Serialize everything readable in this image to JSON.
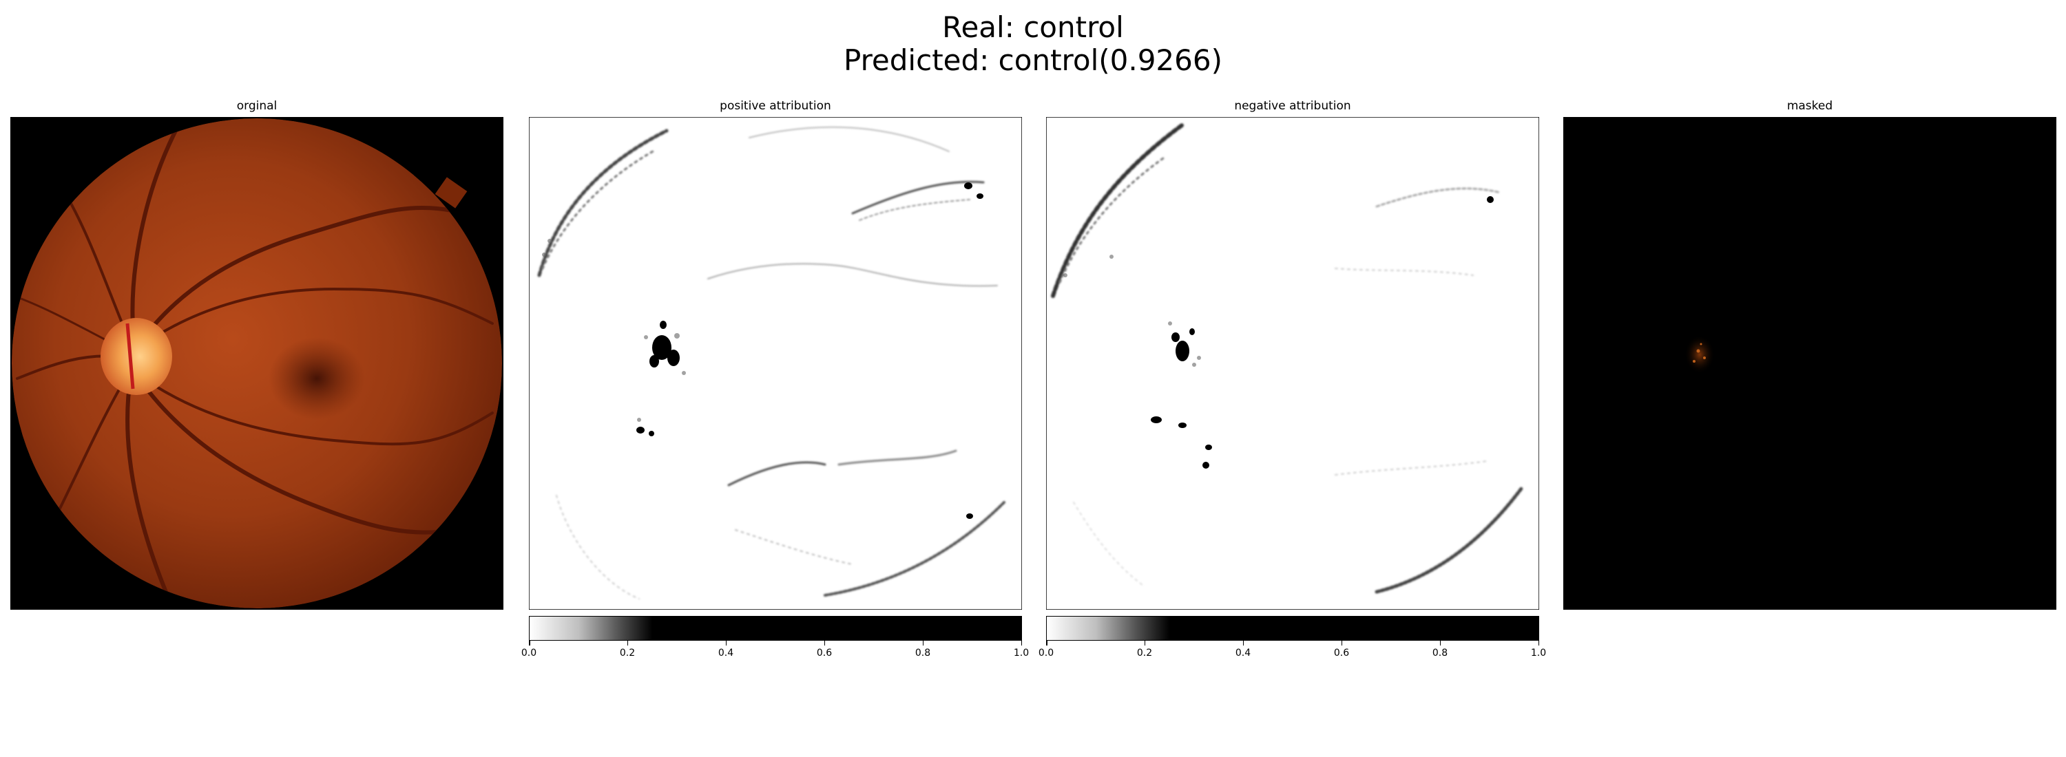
{
  "title": {
    "real_label": "Real: control",
    "predicted_label": "Predicted: control(0.9266)"
  },
  "panels": [
    {
      "title": "orginal",
      "kind": "fundus-image"
    },
    {
      "title": "positive attribution",
      "kind": "attribution-map"
    },
    {
      "title": "negative attribution",
      "kind": "attribution-map"
    },
    {
      "title": "masked",
      "kind": "masked-image"
    }
  ],
  "colorbar": {
    "colormap": "gray_r",
    "ticks": [
      "0.0",
      "0.2",
      "0.4",
      "0.6",
      "0.8",
      "1.0"
    ]
  },
  "colors": {
    "background": "#ffffff",
    "fundus_dark": "#6b1d08",
    "fundus_mid": "#b0461a",
    "optic_disc": "#f6b060",
    "attribution": "#000000"
  },
  "chart_data": {
    "type": "heatmap",
    "title": "Real: control\nPredicted: control(0.9266)",
    "real_class": "control",
    "predicted_class": "control",
    "predicted_probability": 0.9266,
    "subplots": [
      "orginal",
      "positive attribution",
      "negative attribution",
      "masked"
    ],
    "colorbar_range": [
      0.0,
      1.0
    ],
    "colorbar_ticks": [
      0.0,
      0.2,
      0.4,
      0.6,
      0.8,
      1.0
    ]
  }
}
